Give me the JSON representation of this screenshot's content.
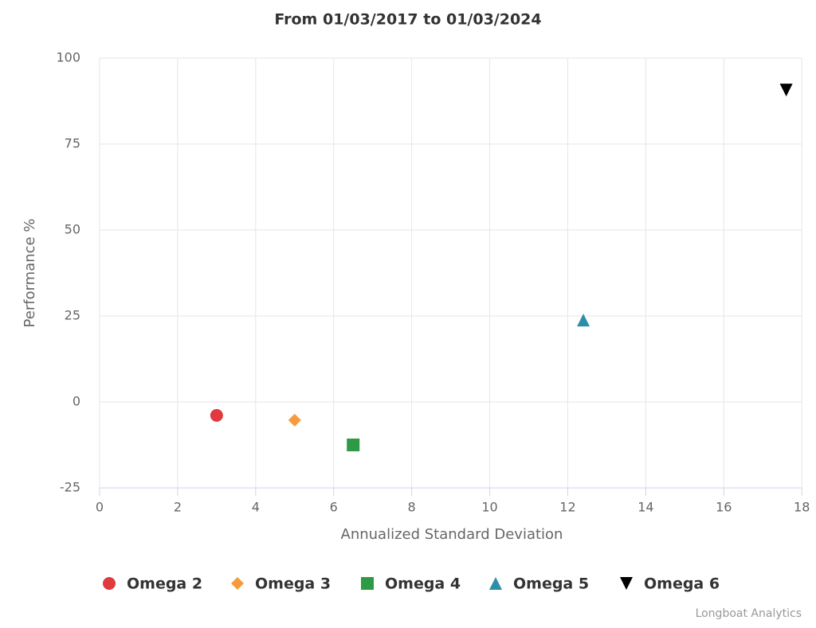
{
  "chart_data": {
    "type": "scatter",
    "title": "From 01/03/2017 to 01/03/2024",
    "x_label": "Annualized Standard Deviation",
    "y_label": "Performance %",
    "credit": "Longboat Analytics",
    "xlim": [
      0,
      18.2
    ],
    "xticks": [
      0,
      2,
      4,
      6,
      8,
      10,
      12,
      14,
      16,
      18
    ],
    "ylim": [
      -25,
      100
    ],
    "yticks": [
      -25,
      0,
      25,
      50,
      75,
      100
    ],
    "grid": true,
    "legend": "bottom",
    "series": [
      {
        "name": "Omega 2",
        "color": "#e0393e",
        "marker": "circle",
        "x": [
          3.0
        ],
        "values": [
          -3.9
        ]
      },
      {
        "name": "Omega 3",
        "color": "#f79a3e",
        "marker": "diamond",
        "x": [
          5.0
        ],
        "values": [
          -5.3
        ]
      },
      {
        "name": "Omega 4",
        "color": "#2e9a45",
        "marker": "square",
        "x": [
          6.5
        ],
        "values": [
          -12.5
        ]
      },
      {
        "name": "Omega 5",
        "color": "#2b8fa9",
        "marker": "triangle",
        "x": [
          12.4
        ],
        "values": [
          23.8
        ]
      },
      {
        "name": "Omega 6",
        "color": "#000000",
        "marker": "triangle-down",
        "x": [
          17.6
        ],
        "values": [
          90.7
        ]
      }
    ]
  }
}
